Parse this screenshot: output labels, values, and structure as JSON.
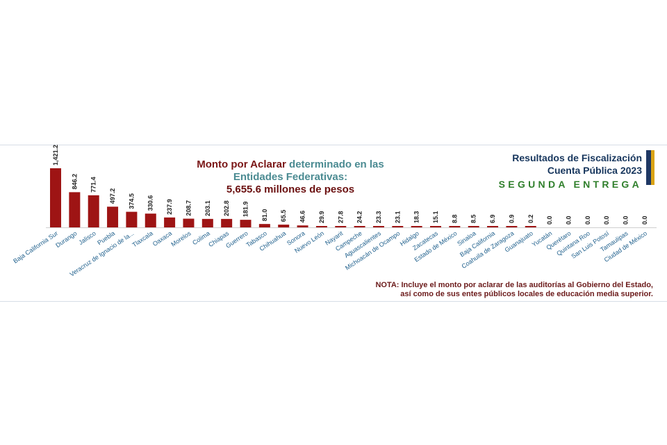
{
  "header": {
    "title_part1": "Monto por Aclarar",
    "title_part2": "determinado en las",
    "title_line2": "Entidades Federativas:",
    "total": "5,655.6 millones de pesos"
  },
  "results": {
    "line1": "Resultados de Fiscalización",
    "line2": "Cuenta Pública 2023",
    "line3": "SEGUNDA ENTREGA"
  },
  "note": {
    "line1": "NOTA: Incluye el monto por aclarar de las auditorías al Gobierno del Estado,",
    "line2": "así como de sus entes públicos locales de educación media superior."
  },
  "colors": {
    "bar": "#9e1414",
    "title_red": "#7a1616",
    "title_teal": "#4b8b92",
    "results_navy": "#17365d",
    "results_green": "#2f7f2b",
    "axis_labels": "#1e5f8c"
  },
  "chart_data": {
    "type": "bar",
    "categories": [
      "Baja California Sur",
      "Durango",
      "Jalisco",
      "Puebla",
      "Veracruz de Ignacio de la...",
      "Tlaxcala",
      "Oaxaca",
      "Morelos",
      "Colima",
      "Chiapas",
      "Guerrero",
      "Tabasco",
      "Chihuahua",
      "Sonora",
      "Nuevo León",
      "Nayarit",
      "Campeche",
      "Aguascalientes",
      "Michoacán de Ocampo",
      "Hidalgo",
      "Zacatecas",
      "Estado de México",
      "Sinaloa",
      "Baja California",
      "Coahuila de Zaragoza",
      "Guanajuato",
      "Yucatán",
      "Querétaro",
      "Quintana Roo",
      "San Luis Potosí",
      "Tamaulipas",
      "Ciudad de México"
    ],
    "values": [
      1421.2,
      846.2,
      771.4,
      497.2,
      374.5,
      330.6,
      237.9,
      208.7,
      203.1,
      202.8,
      181.9,
      81.0,
      65.5,
      46.6,
      29.9,
      27.8,
      24.2,
      23.3,
      23.1,
      18.3,
      15.1,
      8.8,
      8.5,
      6.9,
      0.9,
      0.2,
      0.0,
      0.0,
      0.0,
      0.0,
      0.0,
      0.0
    ],
    "value_labels": [
      "1,421.2",
      "846.2",
      "771.4",
      "497.2",
      "374.5",
      "330.6",
      "237.9",
      "208.7",
      "203.1",
      "202.8",
      "181.9",
      "81.0",
      "65.5",
      "46.6",
      "29.9",
      "27.8",
      "24.2",
      "23.3",
      "23.1",
      "18.3",
      "15.1",
      "8.8",
      "8.5",
      "6.9",
      "0.9",
      "0.2",
      "0.0",
      "0.0",
      "0.0",
      "0.0",
      "0.0",
      "0.0"
    ],
    "ylim": [
      0,
      1421.2
    ],
    "grid": false,
    "legend": "none"
  }
}
